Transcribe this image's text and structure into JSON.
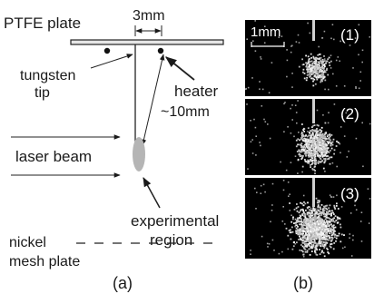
{
  "schematic": {
    "ptfe_label": "PTFE plate",
    "spacing_label": "3mm",
    "tungsten_line1": "tungsten",
    "tungsten_line2": "tip",
    "heater_label": "heater",
    "distance_label": "~10mm",
    "laser_label": "laser beam",
    "exp_line1": "experimental",
    "exp_line2": "region",
    "mesh_line1": "nickel",
    "mesh_line2": "mesh plate",
    "caption": "(a)"
  },
  "images": {
    "scale_label": "1mm",
    "panels": [
      {
        "label": "(1)",
        "spread": 0.55,
        "count": 260
      },
      {
        "label": "(2)",
        "spread": 0.8,
        "count": 650
      },
      {
        "label": "(3)",
        "spread": 1.0,
        "count": 1100
      }
    ],
    "caption": "(b)"
  }
}
